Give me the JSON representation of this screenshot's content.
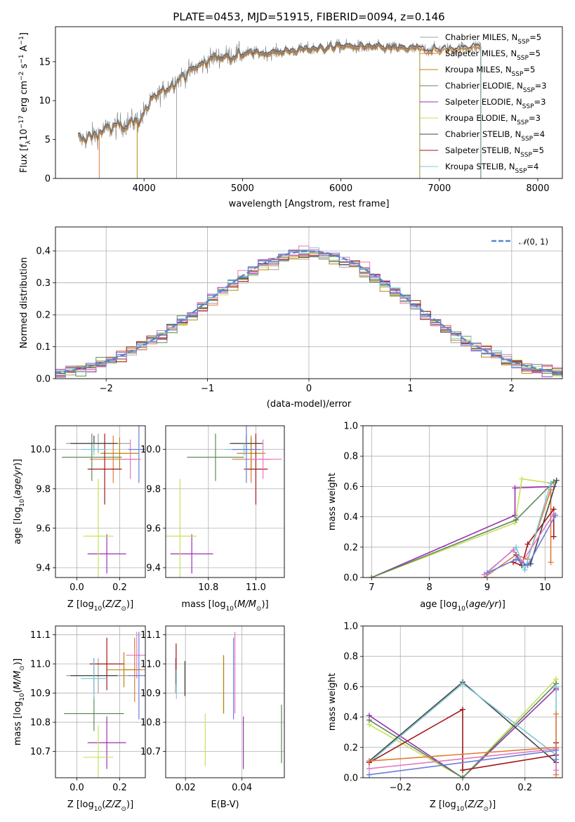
{
  "figure_title": "PLATE=0453, MJD=51915, FIBERID=0094, z=0.146",
  "chart_data": [
    {
      "id": "spectrum",
      "type": "line",
      "title": "PLATE=0453, MJD=51915, FIBERID=0094, z=0.146",
      "xlabel": "wavelength [Angstrom, rest frame]",
      "ylabel": "Flux [f_λ 10^-17 erg cm^-2 s^-1 A^-1]",
      "xlim": [
        3100,
        8250
      ],
      "ylim": [
        0,
        19.5
      ],
      "xticks": [
        4000,
        5000,
        6000,
        7000,
        8000
      ],
      "yticks": [
        0,
        5,
        10,
        15
      ],
      "grid": false,
      "legend_position": "upper right",
      "data_wavelength_range": [
        3330,
        7420
      ],
      "continuum_nodes": {
        "x": [
          3330,
          3450,
          3600,
          3800,
          3950,
          4100,
          4300,
          4500,
          4700,
          5000,
          5300,
          5600,
          6000,
          6300,
          6600,
          6800,
          7000,
          7200,
          7420
        ],
        "y": [
          5.0,
          5.3,
          6.2,
          7.0,
          7.5,
          10.2,
          12.4,
          14.0,
          15.5,
          16.0,
          16.2,
          16.5,
          17.0,
          16.8,
          16.7,
          16.6,
          16.5,
          16.7,
          17.0
        ]
      },
      "series": [
        {
          "name": "Chabrier MILES, N_SSP=5",
          "color": "#a0a0a0",
          "stop_wavelength": 6800
        },
        {
          "name": "Salpeter MILES, N_SSP=5",
          "color": "#e07b39",
          "stop_wavelength": 7420
        },
        {
          "name": "Kroupa MILES, N_SSP=5",
          "color": "#b8860b",
          "stop_wavelength": 7420
        },
        {
          "name": "Chabrier ELODIE, N_SSP=3",
          "color": "#5b8a5b",
          "stop_wavelength": 6800
        },
        {
          "name": "Salpeter ELODIE, N_SSP=3",
          "color": "#9b30b0",
          "stop_wavelength": 6800
        },
        {
          "name": "Kroupa ELODIE, N_SSP=3",
          "color": "#c8e05a",
          "stop_wavelength": 6800
        },
        {
          "name": "Chabrier STELIB, N_SSP=4",
          "color": "#444444",
          "stop_wavelength": 7420
        },
        {
          "name": "Salpeter STELIB, N_SSP=5",
          "color": "#a01818",
          "stop_wavelength": 7420
        },
        {
          "name": "Kroupa STELIB, N_SSP=4",
          "color": "#7ec8d8",
          "stop_wavelength": 7420
        }
      ],
      "legend_labels": [
        {
          "base": "Chabrier MILES, N",
          "sub": "SSP",
          "tail": "=5"
        },
        {
          "base": "Salpeter MILES, N",
          "sub": "SSP",
          "tail": "=5"
        },
        {
          "base": "Kroupa MILES, N",
          "sub": "SSP",
          "tail": "=5"
        },
        {
          "base": "Chabrier ELODIE, N",
          "sub": "SSP",
          "tail": "=3"
        },
        {
          "base": "Salpeter ELODIE, N",
          "sub": "SSP",
          "tail": "=3"
        },
        {
          "base": "Kroupa ELODIE, N",
          "sub": "SSP",
          "tail": "=3"
        },
        {
          "base": "Chabrier STELIB, N",
          "sub": "SSP",
          "tail": "=4"
        },
        {
          "base": "Salpeter STELIB, N",
          "sub": "SSP",
          "tail": "=5"
        },
        {
          "base": "Kroupa STELIB, N",
          "sub": "SSP",
          "tail": "=4"
        }
      ]
    },
    {
      "id": "residuals",
      "type": "histogram",
      "xlabel": "(data-model)/error",
      "ylabel": "Normed distribution",
      "xlim": [
        -2.5,
        2.5
      ],
      "ylim": [
        0,
        0.475
      ],
      "xticks": [
        -2,
        -1,
        0,
        1,
        2
      ],
      "yticks": [
        0.0,
        0.1,
        0.2,
        0.3,
        0.4
      ],
      "grid": true,
      "legend_position": "upper right",
      "reference_curve": {
        "name": "N(0,1)",
        "color": "#5588cc",
        "style": "dashed"
      },
      "bin_width": 0.1
    },
    {
      "id": "age_vs_Z",
      "type": "errorbar",
      "xlabel": "Z [log10(Z/Z_sun)]",
      "ylabel": "age [log10(age/yr)]",
      "xlim": [
        -0.1,
        0.32
      ],
      "ylim": [
        9.35,
        10.12
      ],
      "xticks": [
        0.0,
        0.2
      ],
      "yticks": [
        9.4,
        9.6,
        9.8,
        10.0
      ],
      "grid": true,
      "points": [
        {
          "color": "#a0a0a0",
          "x": 0.1,
          "xerr": 0.15,
          "y": 10.03,
          "yerr": 0.05
        },
        {
          "color": "#e07b39",
          "x": 0.17,
          "xerr": 0.11,
          "y": 9.95,
          "yerr": 0.12
        },
        {
          "color": "#b8860b",
          "x": 0.2,
          "xerr": 0.09,
          "y": 9.98,
          "yerr": 0.08
        },
        {
          "color": "#5b8a5b",
          "x": 0.07,
          "xerr": 0.14,
          "y": 9.96,
          "yerr": 0.12
        },
        {
          "color": "#9b30b0",
          "x": 0.14,
          "xerr": 0.09,
          "y": 9.47,
          "yerr": 0.1
        },
        {
          "color": "#c8e05a",
          "x": 0.1,
          "xerr": 0.07,
          "y": 9.56,
          "yerr": 0.29
        },
        {
          "color": "#444444",
          "x": 0.08,
          "xerr": 0.11,
          "y": 10.03,
          "yerr": 0.04
        },
        {
          "color": "#a01818",
          "x": 0.13,
          "xerr": 0.08,
          "y": 9.9,
          "yerr": 0.18
        },
        {
          "color": "#7ec8d8",
          "x": 0.08,
          "xerr": 0.06,
          "y": 10.0,
          "yerr": 0.03
        },
        {
          "color": "#e377c2",
          "x": 0.25,
          "xerr": 0.05,
          "y": 9.95,
          "yerr": 0.1
        },
        {
          "color": "#6a7fd8",
          "x": 0.29,
          "xerr": 0.05,
          "y": 10.0,
          "yerr": 0.17
        }
      ]
    },
    {
      "id": "age_vs_mass",
      "type": "errorbar",
      "xlabel": "mass [log10(M/M_sun)]",
      "ylabel": "",
      "xlim": [
        10.62,
        11.12
      ],
      "ylim": [
        9.35,
        10.12
      ],
      "xticks": [
        10.8,
        11.0
      ],
      "yticks": [
        9.4,
        9.6,
        9.8,
        10.0
      ],
      "grid": true,
      "points": [
        {
          "color": "#a0a0a0",
          "x": 10.96,
          "xerr": 0.06,
          "y": 10.03,
          "yerr": 0.05
        },
        {
          "color": "#e07b39",
          "x": 10.98,
          "xerr": 0.08,
          "y": 9.95,
          "yerr": 0.12
        },
        {
          "color": "#b8860b",
          "x": 10.98,
          "xerr": 0.06,
          "y": 9.98,
          "yerr": 0.08
        },
        {
          "color": "#5b8a5b",
          "x": 10.83,
          "xerr": 0.12,
          "y": 9.96,
          "yerr": 0.12
        },
        {
          "color": "#9b30b0",
          "x": 10.73,
          "xerr": 0.09,
          "y": 9.47,
          "yerr": 0.1
        },
        {
          "color": "#c8e05a",
          "x": 10.68,
          "xerr": 0.07,
          "y": 9.56,
          "yerr": 0.29
        },
        {
          "color": "#444444",
          "x": 10.96,
          "xerr": 0.07,
          "y": 10.03,
          "yerr": 0.04
        },
        {
          "color": "#a01818",
          "x": 11.0,
          "xerr": 0.05,
          "y": 9.9,
          "yerr": 0.18
        },
        {
          "color": "#7ec8d8",
          "x": 10.95,
          "xerr": 0.08,
          "y": 10.0,
          "yerr": 0.03
        },
        {
          "color": "#e377c2",
          "x": 11.03,
          "xerr": 0.08,
          "y": 9.95,
          "yerr": 0.1
        },
        {
          "color": "#6a7fd8",
          "x": 10.96,
          "xerr": 0.06,
          "y": 10.0,
          "yerr": 0.17
        }
      ]
    },
    {
      "id": "weight_vs_age",
      "type": "line",
      "xlabel": "age [log10(age/yr)]",
      "ylabel": "mass weight",
      "xlim": [
        6.85,
        10.3
      ],
      "ylim": [
        0,
        1.0
      ],
      "xticks": [
        7,
        8,
        9,
        10
      ],
      "yticks": [
        0.0,
        0.2,
        0.4,
        0.6,
        0.8,
        1.0
      ],
      "grid": true,
      "series": [
        {
          "color": "#9b30b0",
          "x": [
            7.0,
            9.48,
            9.48,
            10.15
          ],
          "y": [
            0.0,
            0.41,
            0.59,
            0.6
          ]
        },
        {
          "color": "#c8e05a",
          "x": [
            7.0,
            9.48,
            9.6,
            10.15
          ],
          "y": [
            0.0,
            0.36,
            0.65,
            0.62
          ]
        },
        {
          "color": "#5b8a5b",
          "x": [
            7.0,
            9.5,
            10.15
          ],
          "y": [
            0.0,
            0.38,
            0.63
          ]
        },
        {
          "color": "#e07b39",
          "x": [
            8.95,
            9.5,
            9.7,
            10.1,
            10.1
          ],
          "y": [
            0.0,
            0.15,
            0.12,
            0.58,
            0.1
          ]
        },
        {
          "color": "#a01818",
          "x": [
            9.45,
            9.6,
            9.7,
            10.15,
            10.15
          ],
          "y": [
            0.1,
            0.08,
            0.22,
            0.45,
            0.27
          ]
        },
        {
          "color": "#444444",
          "x": [
            9.5,
            9.6,
            9.75,
            10.2
          ],
          "y": [
            0.15,
            0.08,
            0.09,
            0.64
          ]
        },
        {
          "color": "#7ec8d8",
          "x": [
            9.0,
            9.5,
            9.65,
            10.1
          ],
          "y": [
            0.03,
            0.2,
            0.05,
            0.62
          ]
        },
        {
          "color": "#e377c2",
          "x": [
            8.95,
            9.45,
            9.6,
            10.15
          ],
          "y": [
            0.02,
            0.18,
            0.1,
            0.42
          ]
        },
        {
          "color": "#6a7fd8",
          "x": [
            9.0,
            9.5,
            9.7,
            10.18
          ],
          "y": [
            0.03,
            0.12,
            0.08,
            0.41
          ]
        }
      ]
    },
    {
      "id": "mass_vs_Z",
      "type": "errorbar",
      "xlabel": "Z [log10(Z/Z_sun)]",
      "ylabel": "mass [log10(M/M_sun)]",
      "xlim": [
        -0.1,
        0.32
      ],
      "ylim": [
        10.61,
        11.13
      ],
      "xticks": [
        0.0,
        0.2
      ],
      "yticks": [
        10.7,
        10.8,
        10.9,
        11.0,
        11.1
      ],
      "grid": true,
      "points": [
        {
          "color": "#a0a0a0",
          "x": 0.1,
          "xerr": 0.15,
          "y": 10.96,
          "yerr": 0.06
        },
        {
          "color": "#e07b39",
          "x": 0.27,
          "xerr": 0.05,
          "y": 10.98,
          "yerr": 0.11
        },
        {
          "color": "#b8860b",
          "x": 0.22,
          "xerr": 0.08,
          "y": 10.98,
          "yerr": 0.06
        },
        {
          "color": "#5b8a5b",
          "x": 0.08,
          "xerr": 0.14,
          "y": 10.83,
          "yerr": 0.06
        },
        {
          "color": "#9b30b0",
          "x": 0.14,
          "xerr": 0.09,
          "y": 10.73,
          "yerr": 0.09
        },
        {
          "color": "#c8e05a",
          "x": 0.1,
          "xerr": 0.07,
          "y": 10.68,
          "yerr": 0.11
        },
        {
          "color": "#444444",
          "x": 0.08,
          "xerr": 0.11,
          "y": 10.96,
          "yerr": 0.06
        },
        {
          "color": "#a01818",
          "x": 0.14,
          "xerr": 0.08,
          "y": 11.0,
          "yerr": 0.09
        },
        {
          "color": "#7ec8d8",
          "x": 0.08,
          "xerr": 0.06,
          "y": 10.95,
          "yerr": 0.07
        },
        {
          "color": "#e377c2",
          "x": 0.28,
          "xerr": 0.05,
          "y": 11.03,
          "yerr": 0.08
        },
        {
          "color": "#6a7fd8",
          "x": 0.29,
          "xerr": 0.05,
          "y": 10.96,
          "yerr": 0.15
        }
      ]
    },
    {
      "id": "mass_vs_ebv",
      "type": "errorbar",
      "xlabel": "E(B-V)",
      "ylabel": "",
      "xlim": [
        0.013,
        0.055
      ],
      "ylim": [
        10.61,
        11.13
      ],
      "xticks": [
        0.02,
        0.04
      ],
      "yticks": [
        10.7,
        10.8,
        10.9,
        11.0,
        11.1
      ],
      "grid": true,
      "points": [
        {
          "color": "#a0a0a0",
          "x": 0.0165,
          "xerr": 0,
          "y": 10.96,
          "yerr": 0.06
        },
        {
          "color": "#e07b39",
          "x": 0.0335,
          "xerr": 0,
          "y": 10.93,
          "yerr": 0.1
        },
        {
          "color": "#b8860b",
          "x": 0.0335,
          "xerr": 0,
          "y": 10.93,
          "yerr": 0.1
        },
        {
          "color": "#5b8a5b",
          "x": 0.054,
          "xerr": 0,
          "y": 10.76,
          "yerr": 0.1
        },
        {
          "color": "#9b30b0",
          "x": 0.0405,
          "xerr": 0,
          "y": 10.73,
          "yerr": 0.09
        },
        {
          "color": "#c8e05a",
          "x": 0.027,
          "xerr": 0,
          "y": 10.74,
          "yerr": 0.09
        },
        {
          "color": "#444444",
          "x": 0.0198,
          "xerr": 0,
          "y": 10.95,
          "yerr": 0.06
        },
        {
          "color": "#a01818",
          "x": 0.0167,
          "xerr": 0,
          "y": 11.0,
          "yerr": 0.07
        },
        {
          "color": "#7ec8d8",
          "x": 0.0168,
          "xerr": 0,
          "y": 10.93,
          "yerr": 0.05
        },
        {
          "color": "#e377c2",
          "x": 0.0375,
          "xerr": 0,
          "y": 10.97,
          "yerr": 0.14
        },
        {
          "color": "#6a7fd8",
          "x": 0.037,
          "xerr": 0,
          "y": 10.95,
          "yerr": 0.14
        }
      ]
    },
    {
      "id": "weight_vs_Z",
      "type": "line",
      "xlabel": "Z [log10(Z/Z_sun)]",
      "ylabel": "mass weight",
      "xlim": [
        -0.32,
        0.32
      ],
      "ylim": [
        0,
        1.0
      ],
      "xticks": [
        -0.2,
        0.0,
        0.2
      ],
      "yticks": [
        0.0,
        0.2,
        0.4,
        0.6,
        0.8,
        1.0
      ],
      "grid": true,
      "series": [
        {
          "color": "#9b30b0",
          "x": [
            -0.3,
            0.0,
            0.3,
            0.3
          ],
          "y": [
            0.41,
            0.0,
            0.59,
            0.58
          ]
        },
        {
          "color": "#c8e05a",
          "x": [
            -0.3,
            0.0,
            0.3,
            0.3
          ],
          "y": [
            0.35,
            0.0,
            0.65,
            0.62
          ]
        },
        {
          "color": "#5b8a5b",
          "x": [
            -0.3,
            0.0,
            0.3
          ],
          "y": [
            0.38,
            0.0,
            0.62
          ]
        },
        {
          "color": "#444444",
          "x": [
            -0.3,
            0.0,
            0.3,
            0.3
          ],
          "y": [
            0.11,
            0.63,
            0.1,
            0.15
          ]
        },
        {
          "color": "#7ec8d8",
          "x": [
            -0.3,
            0.0,
            0.3,
            0.3
          ],
          "y": [
            0.1,
            0.62,
            0.15,
            0.6
          ]
        },
        {
          "color": "#a01818",
          "x": [
            -0.3,
            0.0,
            0.0,
            0.3,
            0.3
          ],
          "y": [
            0.1,
            0.45,
            0.05,
            0.15,
            0.23
          ]
        },
        {
          "color": "#e07b39",
          "x": [
            -0.3,
            0.3,
            0.3,
            0.3
          ],
          "y": [
            0.11,
            0.2,
            0.42,
            0.02
          ]
        },
        {
          "color": "#e377c2",
          "x": [
            -0.3,
            0.3,
            0.3
          ],
          "y": [
            0.06,
            0.19,
            0.05
          ]
        },
        {
          "color": "#6a7fd8",
          "x": [
            -0.3,
            0.3,
            0.3
          ],
          "y": [
            0.02,
            0.18,
            0.12
          ]
        }
      ]
    }
  ]
}
